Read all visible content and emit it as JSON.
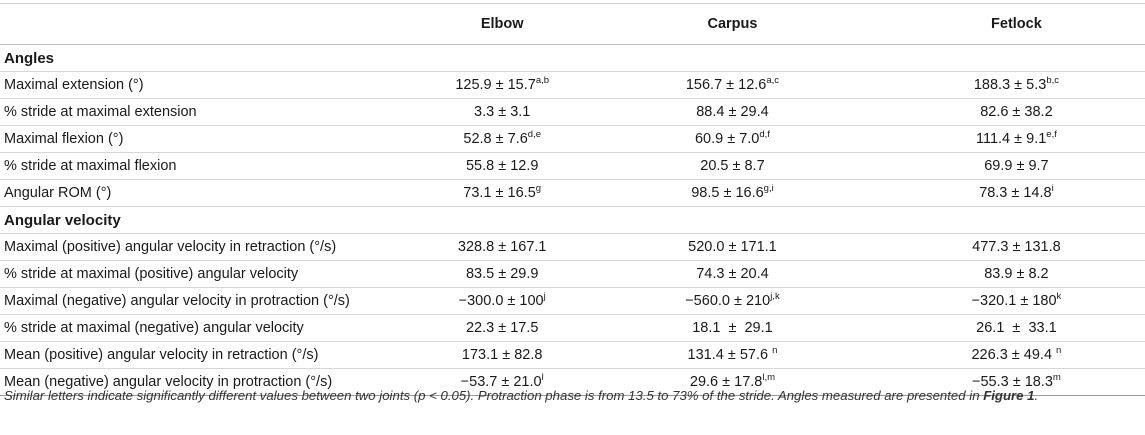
{
  "header": {
    "col0": "",
    "col1": "Elbow",
    "col2": "Carpus",
    "col3": "Fetlock"
  },
  "sections": [
    {
      "title": "Angles",
      "rows": [
        {
          "label": "Maximal extension (°)",
          "v1": "125.9 ± 15.7",
          "s1": "a,b",
          "v2": "156.7 ± 12.6",
          "s2": "a,c",
          "v3": "188.3 ± 5.3",
          "s3": "b,c"
        },
        {
          "label": "% stride at maximal extension",
          "v1": "3.3 ± 3.1",
          "s1": "",
          "v2": "88.4 ± 29.4",
          "s2": "",
          "v3": "82.6 ± 38.2",
          "s3": ""
        },
        {
          "label": "Maximal flexion (°)",
          "v1": "52.8 ± 7.6",
          "s1": "d,e",
          "v2": "60.9 ± 7.0",
          "s2": "d,f",
          "v3": "111.4 ± 9.1",
          "s3": "e,f"
        },
        {
          "label": "% stride at maximal flexion",
          "v1": "55.8 ± 12.9",
          "s1": "",
          "v2": "20.5 ± 8.7",
          "s2": "",
          "v3": "69.9 ± 9.7",
          "s3": ""
        },
        {
          "label": "Angular ROM (°)",
          "v1": "73.1 ± 16.5",
          "s1": "g",
          "v2": "98.5 ± 16.6",
          "s2": "g,i",
          "v3": "78.3 ± 14.8",
          "s3": "i"
        }
      ]
    },
    {
      "title": "Angular velocity",
      "rows": [
        {
          "label": "Maximal (positive) angular velocity in retraction (°/s)",
          "v1": "328.8 ± 167.1",
          "s1": "",
          "v2": "520.0 ± 171.1",
          "s2": "",
          "v3": "477.3 ± 131.8",
          "s3": ""
        },
        {
          "label": "% stride at maximal (positive) angular velocity",
          "v1": "83.5 ± 29.9",
          "s1": "",
          "v2": "74.3 ± 20.4",
          "s2": "",
          "v3": "83.9 ± 8.2",
          "s3": ""
        },
        {
          "label": "Maximal (negative) angular velocity in protraction (°/s)",
          "v1": "−300.0 ± 100",
          "s1": "j",
          "v2": "−560.0 ± 210",
          "s2": "j,k",
          "v3": "−320.1 ± 180",
          "s3": "k"
        },
        {
          "label": "% stride at maximal (negative) angular velocity",
          "v1": "22.3 ± 17.5",
          "s1": "",
          "v2": "18.1  ±  29.1",
          "s2": "",
          "v3": "26.1  ±  33.1",
          "s3": ""
        },
        {
          "label": "Mean (positive) angular velocity in retraction (°/s)",
          "v1": "173.1 ± 82.8",
          "s1": "",
          "v2": "131.4 ± 57.6 ",
          "s2": "n",
          "v3": "226.3 ± 49.4 ",
          "s3": "n"
        },
        {
          "label": "Mean (negative) angular velocity in protraction (°/s)",
          "v1": "−53.7 ± 21.0",
          "s1": "l",
          "v2": "29.6 ± 17.8",
          "s2": "l,m",
          "v3": "−55.3 ± 18.3",
          "s3": "m"
        }
      ]
    }
  ],
  "footnote": {
    "text": "Similar letters indicate significantly different values between two joints (p < 0.05). Protraction phase is from 13.5 to 73% of the stride. Angles measured are presented in ",
    "ref": "Figure 1",
    "end": "."
  }
}
